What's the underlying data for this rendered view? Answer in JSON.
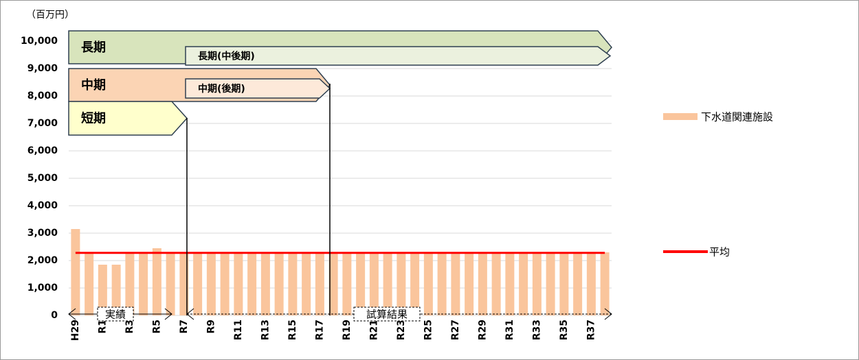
{
  "chart_data": {
    "type": "bar",
    "unit_label": "（百万円）",
    "categories": [
      "H29",
      null,
      "R1",
      null,
      "R3",
      null,
      "R5",
      null,
      "R7",
      null,
      "R9",
      null,
      "R11",
      null,
      "R13",
      null,
      "R15",
      null,
      "R17",
      null,
      "R19",
      null,
      "R21",
      null,
      "R23",
      null,
      "R25",
      null,
      "R27",
      null,
      "R29",
      null,
      "R31",
      null,
      "R33",
      null,
      "R35",
      null,
      "R37",
      null
    ],
    "series": [
      {
        "name": "下水道関連施設",
        "color": "#fac59c",
        "values": [
          3150,
          2300,
          1850,
          1850,
          2300,
          2300,
          2450,
          2300,
          2300,
          2300,
          2300,
          2300,
          2300,
          2300,
          2300,
          2300,
          2300,
          2300,
          2300,
          2300,
          2300,
          2300,
          2300,
          2300,
          2300,
          2300,
          2300,
          2300,
          2300,
          2300,
          2300,
          2300,
          2300,
          2300,
          2300,
          2300,
          2300,
          2300,
          2300,
          2300
        ]
      },
      {
        "name": "平均",
        "color": "#ff0000",
        "type": "line",
        "values": [
          2280,
          2280,
          2280,
          2280,
          2280,
          2280,
          2280,
          2280,
          2280,
          2280,
          2280,
          2280,
          2280,
          2280,
          2280,
          2280,
          2280,
          2280,
          2280,
          2280,
          2280,
          2280,
          2280,
          2280,
          2280,
          2280,
          2280,
          2280,
          2280,
          2280,
          2280,
          2280,
          2280,
          2280,
          2280,
          2280,
          2280,
          2280,
          2280,
          2280
        ]
      }
    ],
    "ylim": [
      0,
      10000
    ],
    "yticks": [
      0,
      {
        "value": 1000,
        "label": "1,000"
      },
      {
        "value": 2000,
        "label": "2,000"
      },
      {
        "value": 3000,
        "label": "3,000"
      },
      {
        "value": 4000,
        "label": "4,000"
      },
      {
        "value": 5000,
        "label": "5,000"
      },
      {
        "value": 6000,
        "label": "6,000"
      },
      {
        "value": 7000,
        "label": "7,000"
      },
      {
        "value": 8000,
        "label": "8,000"
      },
      {
        "value": 9000,
        "label": "9,000"
      },
      {
        "value": 10000,
        "label": "10,000"
      }
    ],
    "grid": true,
    "legend": "right",
    "annotations": [
      "長期",
      "長期(中後期)",
      "中期",
      "中期(後期)",
      "短期",
      "実績",
      "試算結果"
    ]
  }
}
